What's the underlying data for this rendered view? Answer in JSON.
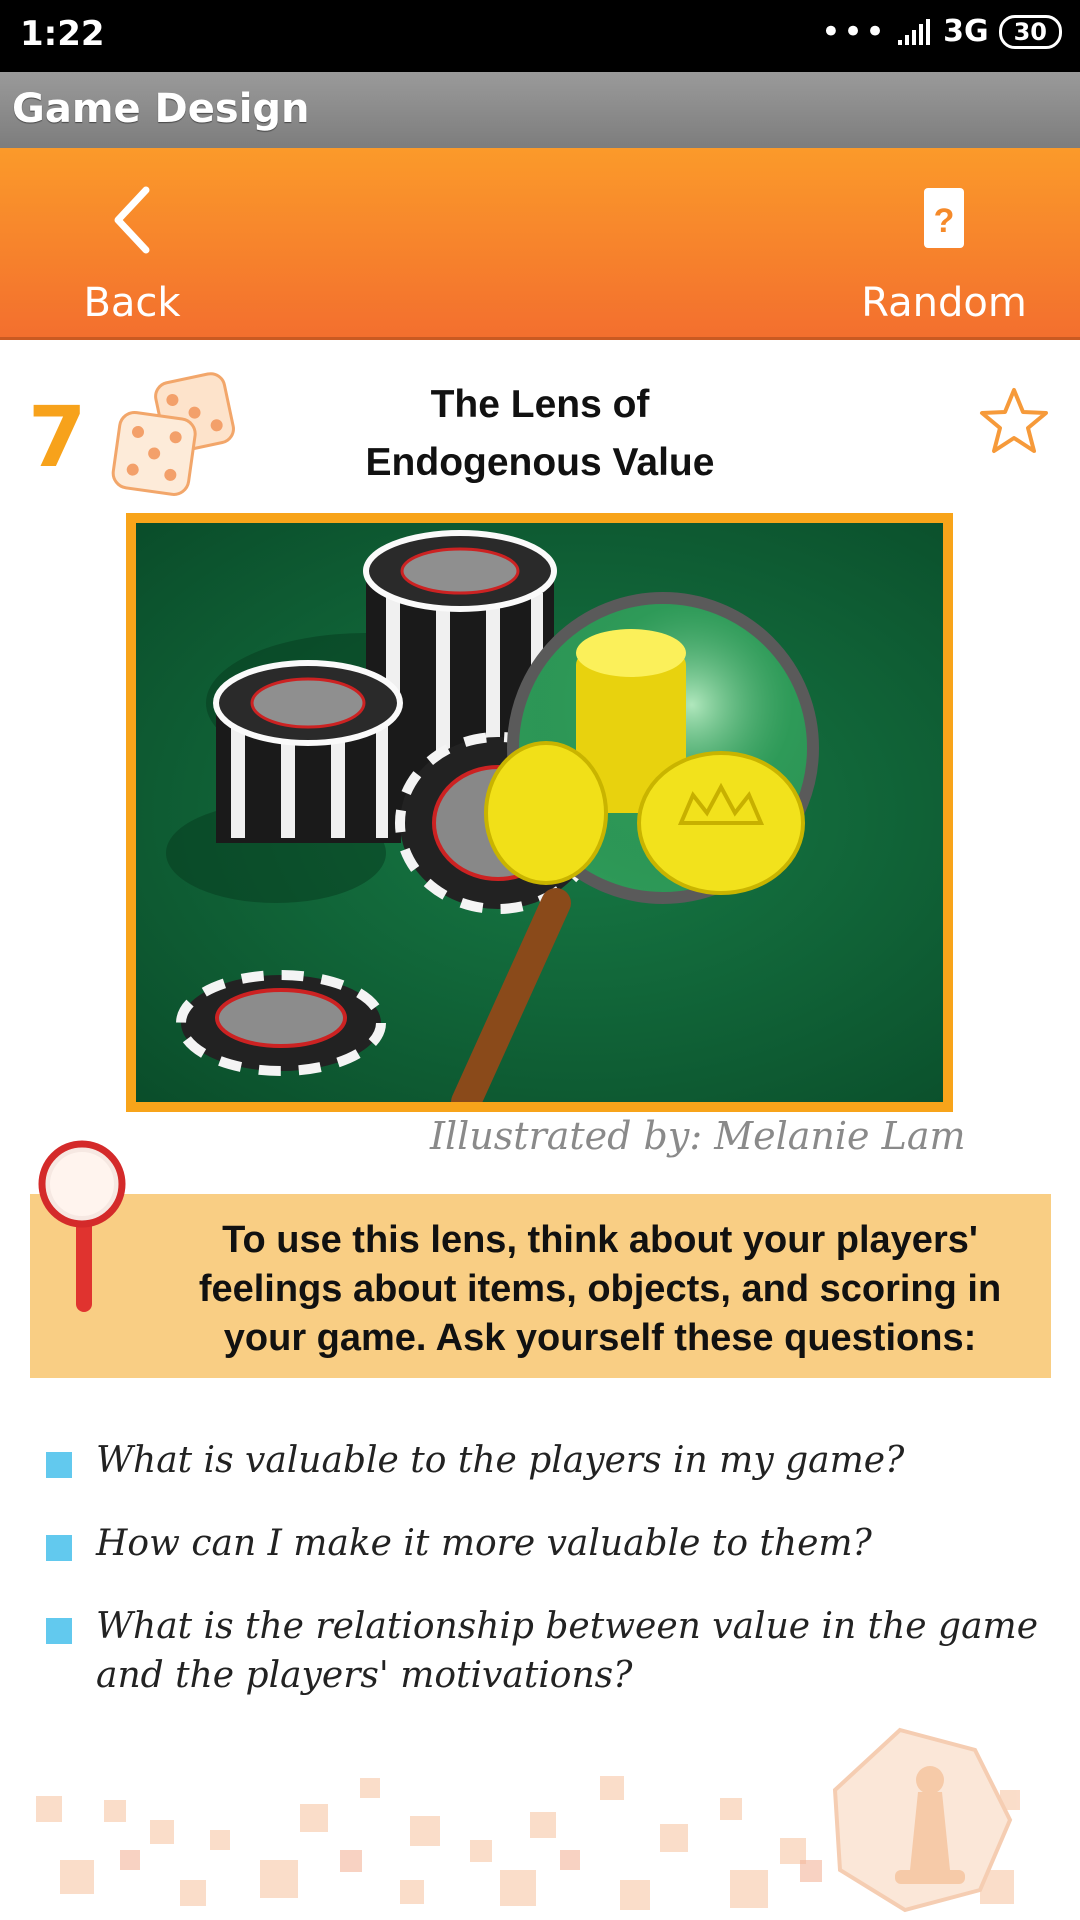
{
  "status_bar": {
    "time": "1:22",
    "dots": "•••",
    "network": "3G",
    "battery": "30"
  },
  "app": {
    "title": "Game Design"
  },
  "nav": {
    "back_label": "Back",
    "random_label": "Random",
    "back_icon": "chevron-left-icon",
    "random_icon": "question-card-icon"
  },
  "lens": {
    "number": "7",
    "title_line1": "The Lens of",
    "title_line2": "Endogenous Value",
    "favorite_icon": "star-outline-icon",
    "illustration_alt": "poker chips and gold coins under a magnifying glass",
    "credit": "Illustrated by: Melanie Lam",
    "instruction": "To use this lens, think about your players' feelings about items, objects, and scoring in your game.  Ask yourself these questions:",
    "questions": [
      "What is valuable to the players in my game?",
      "How can I make it more valuable to them?",
      "What is the relationship between value in the game and the players' motivations?"
    ]
  },
  "colors": {
    "accent_orange": "#f7a21b",
    "nav_top": "#fb9a2a",
    "nav_bottom": "#f36f2e",
    "instruction_bg": "#f9ce84",
    "bullet": "#62c9ee"
  }
}
